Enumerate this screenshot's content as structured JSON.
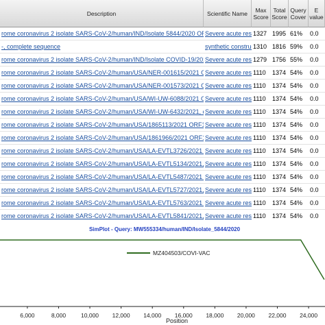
{
  "table": {
    "headers": [
      "Description",
      "Scientific Name",
      "Max Score",
      "Total Score",
      "Query Cover",
      "E value"
    ],
    "rows": [
      [
        "rome coronavirus 2 isolate SARS-CoV-2/human/IND/Isolate 5844/2020 ORF1ab p...",
        "Severe acute res...",
        "1327",
        "1995",
        "61%",
        "0.0"
      ],
      [
        "-, complete sequence",
        "synthetic construct",
        "1310",
        "1816",
        "59%",
        "0.0"
      ],
      [
        "rome coronavirus 2 isolate SARS-CoV-2/human/IND/Isolate COVID-19/2020 ORF1ab p...",
        "Severe acute res...",
        "1279",
        "1756",
        "55%",
        "0.0"
      ],
      [
        "rome coronavirus 2 isolate SARS-CoV-2/human/USA/NER-001615/2021 ORF1ab p...",
        "Severe acute res...",
        "1110",
        "1374",
        "54%",
        "0.0"
      ],
      [
        "rome coronavirus 2 isolate SARS-CoV-2/human/USA/NER-001573/2021 ORF1ab p...",
        "Severe acute res...",
        "1110",
        "1374",
        "54%",
        "0.0"
      ],
      [
        "rome coronavirus 2 isolate SARS-CoV-2/human/USA/WI-UW-6088/2021 ORF1ab p...",
        "Severe acute res...",
        "1110",
        "1374",
        "54%",
        "0.0"
      ],
      [
        "rome coronavirus 2 isolate SARS-CoV-2/human/USA/WI-UW-6432/2021, complete ...",
        "Severe acute res...",
        "1110",
        "1374",
        "54%",
        "0.0"
      ],
      [
        "rome coronavirus 2 isolate SARS-CoV-2/human/USA/1865113/2021 ORF1ab poly...",
        "Severe acute res...",
        "1110",
        "1374",
        "54%",
        "0.0"
      ],
      [
        "rome coronavirus 2 isolate SARS-CoV-2/human/USA/1861966/2021 ORF1ab poly...",
        "Severe acute res...",
        "1110",
        "1374",
        "54%",
        "0.0"
      ],
      [
        "rome coronavirus 2 isolate SARS-CoV-2/human/USA/LA-EVTL3726/2021 ORF1a...",
        "Severe acute res...",
        "1110",
        "1374",
        "54%",
        "0.0"
      ],
      [
        "rome coronavirus 2 isolate SARS-CoV-2/human/USA/LA-EVTL5134/2021, complet...",
        "Severe acute res...",
        "1110",
        "1374",
        "54%",
        "0.0"
      ],
      [
        "rome coronavirus 2 isolate SARS-CoV-2/human/USA/LA-EVTL5487/2021 ORF1ab...",
        "Severe acute res...",
        "1110",
        "1374",
        "54%",
        "0.0"
      ],
      [
        "rome coronavirus 2 isolate SARS-CoV-2/human/USA/LA-EVTL5727/2021, complete...",
        "Severe acute res...",
        "1110",
        "1374",
        "54%",
        "0.0"
      ],
      [
        "rome coronavirus 2 isolate SARS-CoV-2/human/USA/LA-EVTL5763/2021 ORF1ab...",
        "Severe acute res...",
        "1110",
        "1374",
        "54%",
        "0.0"
      ],
      [
        "rome coronavirus 2 isolate SARS-CoV-2/human/USA/LA-EVTL5841/2021, complete...",
        "Severe acute res...",
        "1110",
        "1374",
        "54%",
        "0.0"
      ]
    ]
  },
  "chart_data": {
    "type": "line",
    "title": "SimPlot - Query: MW555334/human/IND/Isolate_5844/2020",
    "xlabel": "Position",
    "x": [
      4250,
      23500,
      25000
    ],
    "series": [
      {
        "name": "MZ404503/COVI-VAC",
        "color": "#2e6b1f",
        "values": [
          1.0,
          1.0,
          0.94
        ]
      }
    ],
    "xlim": [
      4250,
      25050
    ],
    "ylim": [
      0.9,
      1.0
    ],
    "xticks": [
      {
        "value": 6000,
        "label": "6,000"
      },
      {
        "value": 8000,
        "label": "8,000"
      },
      {
        "value": 10000,
        "label": "10,000"
      },
      {
        "value": 12000,
        "label": "12,000"
      },
      {
        "value": 14000,
        "label": "14,000"
      },
      {
        "value": 16000,
        "label": "16,000"
      },
      {
        "value": 18000,
        "label": "18,000"
      },
      {
        "value": 20000,
        "label": "20,000"
      },
      {
        "value": 22000,
        "label": "22,000"
      },
      {
        "value": 24000,
        "label": "24,000"
      }
    ]
  }
}
